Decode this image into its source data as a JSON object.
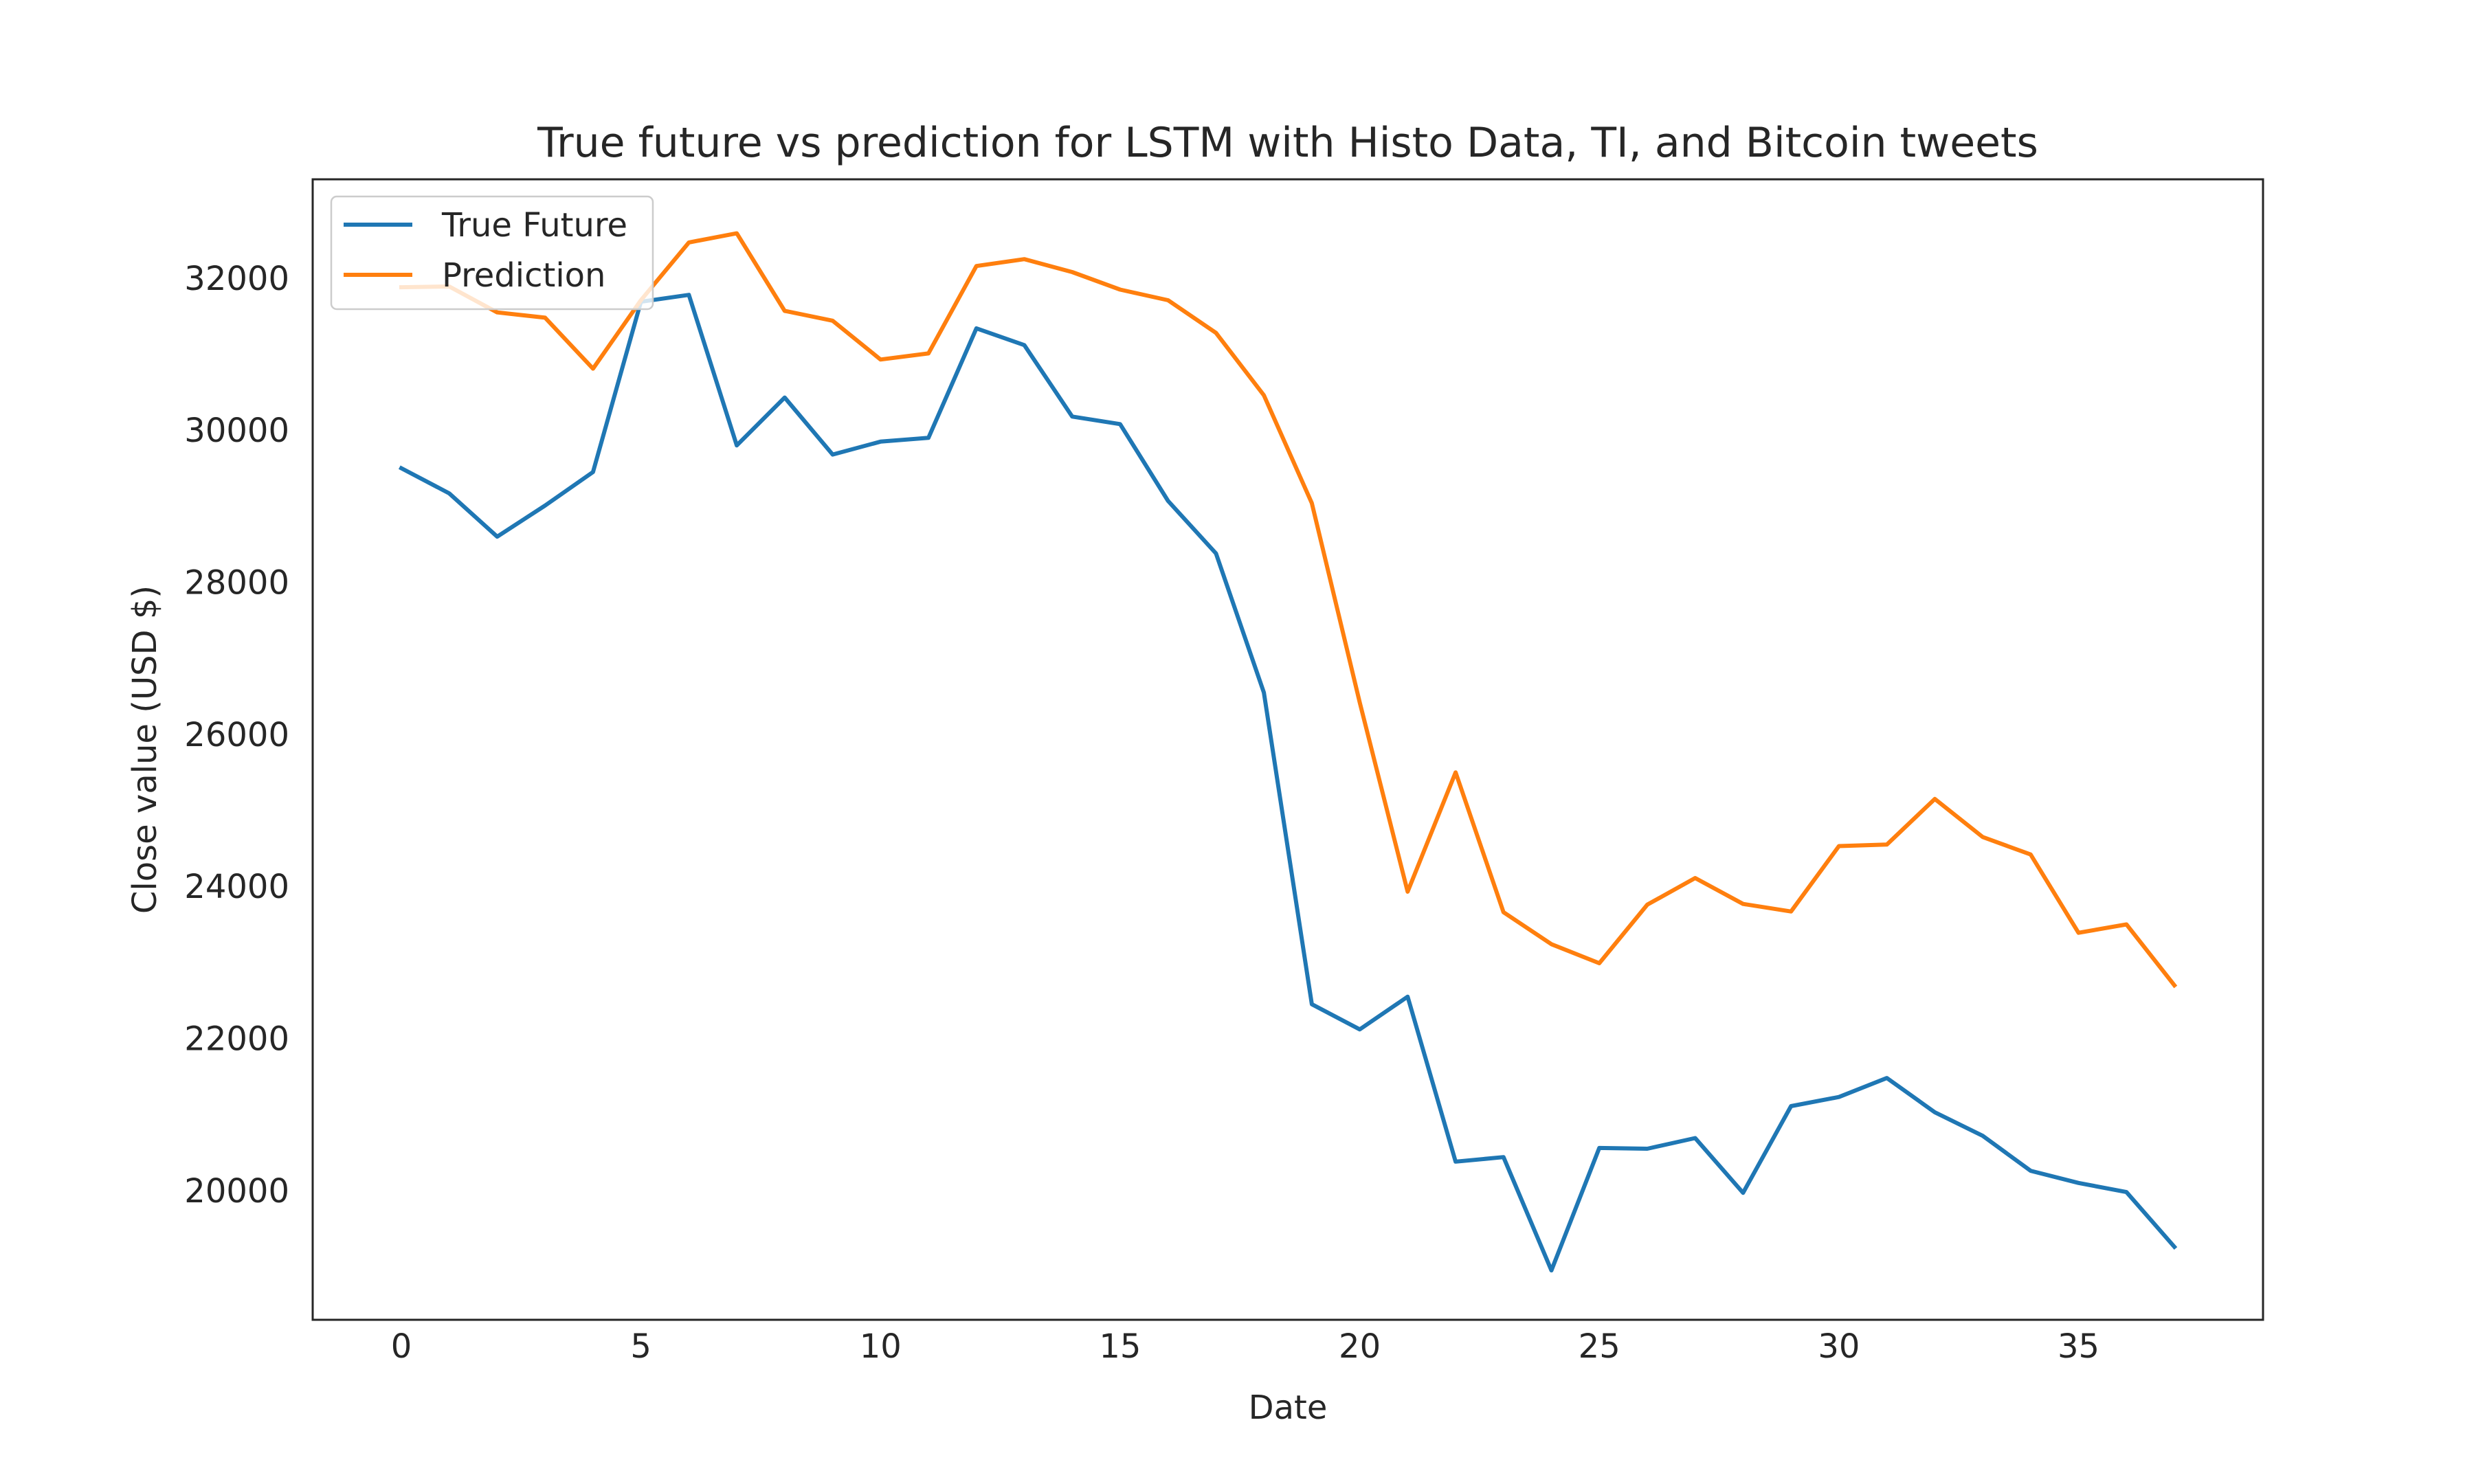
{
  "chart_data": {
    "type": "line",
    "title": "True future vs prediction for LSTM with Histo Data, TI, and Bitcoin tweets",
    "xlabel": "Date",
    "ylabel": "Close value (USD $)",
    "xlim": [
      -1.85,
      38.85
    ],
    "ylim": [
      18300,
      33300
    ],
    "xticks": [
      0,
      5,
      10,
      15,
      20,
      25,
      30,
      35
    ],
    "yticks": [
      20000,
      22000,
      24000,
      26000,
      28000,
      30000,
      32000
    ],
    "grid": false,
    "legend_position": "upper-left",
    "x": [
      0,
      1,
      2,
      3,
      4,
      5,
      6,
      7,
      8,
      9,
      10,
      11,
      12,
      13,
      14,
      15,
      16,
      17,
      18,
      19,
      20,
      21,
      22,
      23,
      24,
      25,
      26,
      27,
      28,
      29,
      30,
      31,
      32,
      33,
      34,
      35,
      36,
      37
    ],
    "series": [
      {
        "name": "True Future",
        "color": "#1f77b4",
        "values": [
          29500,
          29170,
          28600,
          29010,
          29450,
          31690,
          31780,
          29800,
          30430,
          29680,
          29850,
          29900,
          31340,
          31120,
          30180,
          30080,
          29070,
          28380,
          26550,
          22450,
          22120,
          22550,
          20380,
          20440,
          18950,
          20560,
          20550,
          20690,
          19970,
          21110,
          21230,
          21480,
          21030,
          20720,
          20260,
          20100,
          19980,
          19260
        ]
      },
      {
        "name": "Prediction",
        "color": "#ff7f0e",
        "values": [
          31880,
          31890,
          31550,
          31480,
          30810,
          31710,
          32470,
          32590,
          31570,
          31440,
          30930,
          31010,
          32160,
          32250,
          32080,
          31850,
          31710,
          31280,
          30460,
          29040,
          26420,
          23930,
          25500,
          23660,
          23240,
          22990,
          23760,
          24110,
          23770,
          23670,
          24530,
          24550,
          25150,
          24650,
          24420,
          23390,
          23500,
          22700
        ]
      }
    ]
  }
}
